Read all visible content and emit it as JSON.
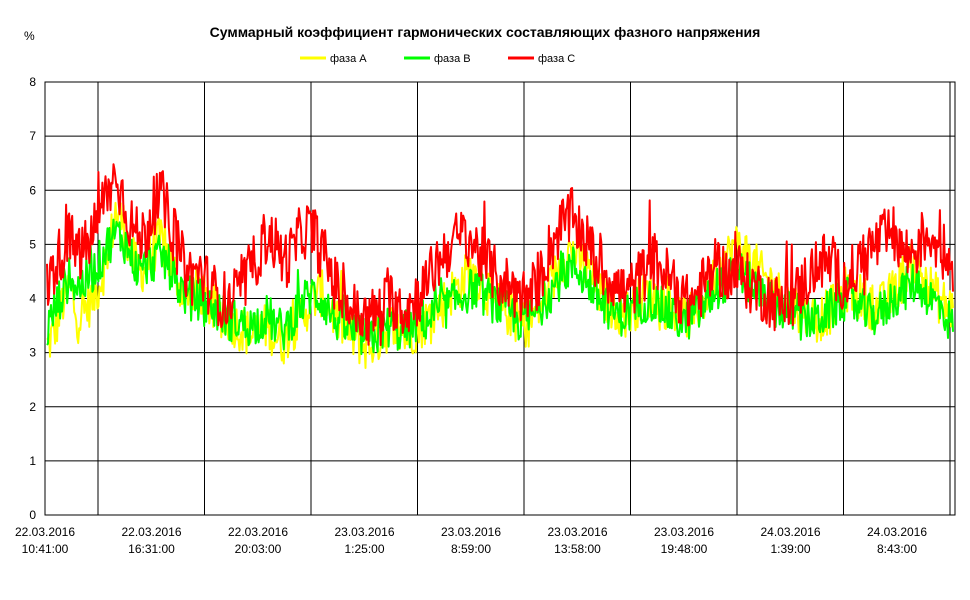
{
  "chart_data": {
    "type": "line",
    "title": "Суммарный коэффициент гармонических составляющих фазного напряжения",
    "ylabel": "%",
    "xlabel": "",
    "ylim": [
      0,
      8
    ],
    "y_ticks": [
      "0",
      "1",
      "2",
      "3",
      "4",
      "5",
      "6",
      "7",
      "8"
    ],
    "grid": true,
    "legend": "top-center",
    "x_tick_labels": [
      {
        "date": "22.03.2016",
        "time": "10:41:00"
      },
      {
        "date": "22.03.2016",
        "time": "16:31:00"
      },
      {
        "date": "22.03.2016",
        "time": "20:03:00"
      },
      {
        "date": "23.03.2016",
        "time": "1:25:00"
      },
      {
        "date": "23.03.2016",
        "time": "8:59:00"
      },
      {
        "date": "23.03.2016",
        "time": "13:58:00"
      },
      {
        "date": "23.03.2016",
        "time": "19:48:00"
      },
      {
        "date": "24.03.2016",
        "time": "1:39:00"
      },
      {
        "date": "24.03.2016",
        "time": "8:43:00"
      }
    ],
    "series": [
      {
        "name": "фаза A",
        "color": "#ffff00",
        "values": [
          3.1,
          3.4,
          3.9,
          4.2,
          3.6,
          3.8,
          4.0,
          4.3,
          4.8,
          5.6,
          5.4,
          4.8,
          4.5,
          4.6,
          4.9,
          5.1,
          4.7,
          4.4,
          4.1,
          4.0,
          4.2,
          3.9,
          3.8,
          3.7,
          3.6,
          3.5,
          3.4,
          3.3,
          3.4,
          3.5,
          3.3,
          3.2,
          3.4,
          3.6,
          3.8,
          4.0,
          4.1,
          3.9,
          3.6,
          3.5,
          3.3,
          3.2,
          3.1,
          3.2,
          3.3,
          3.5,
          3.4,
          3.3,
          3.4,
          3.5,
          3.6,
          3.8,
          3.9,
          4.1,
          4.2,
          4.4,
          4.5,
          4.3,
          4.1,
          3.9,
          3.8,
          3.7,
          3.6,
          3.5,
          3.7,
          3.9,
          4.2,
          4.5,
          4.8,
          4.9,
          4.7,
          4.5,
          4.2,
          4.0,
          3.9,
          3.8,
          3.7,
          3.8,
          4.0,
          4.1,
          4.0,
          3.9,
          3.8,
          3.7,
          3.6,
          3.7,
          3.9,
          4.2,
          4.5,
          4.7,
          4.9,
          5.0,
          4.8,
          4.6,
          4.4,
          4.3,
          4.1,
          4.0,
          3.9,
          3.8,
          3.7,
          3.6,
          3.7,
          3.8,
          4.0,
          4.2,
          4.1,
          4.0,
          3.9,
          3.8,
          3.9,
          4.1,
          4.3,
          4.5,
          4.6,
          4.4,
          4.2,
          4.0,
          3.9,
          3.8
        ],
        "spread": 0.45
      },
      {
        "name": "фаза B",
        "color": "#00ff00",
        "values": [
          3.4,
          3.8,
          4.1,
          4.4,
          4.2,
          4.3,
          4.5,
          4.7,
          5.0,
          5.2,
          5.1,
          4.8,
          4.5,
          4.6,
          4.7,
          4.8,
          4.6,
          4.3,
          4.1,
          4.0,
          4.0,
          3.9,
          3.8,
          3.7,
          3.6,
          3.6,
          3.5,
          3.5,
          3.6,
          3.7,
          3.5,
          3.4,
          3.6,
          3.8,
          4.0,
          4.1,
          4.0,
          3.8,
          3.6,
          3.5,
          3.4,
          3.3,
          3.3,
          3.3,
          3.4,
          3.5,
          3.4,
          3.4,
          3.5,
          3.6,
          3.6,
          3.7,
          3.8,
          3.9,
          4.0,
          4.1,
          4.2,
          4.1,
          4.0,
          3.9,
          3.8,
          3.7,
          3.6,
          3.6,
          3.7,
          3.9,
          4.1,
          4.3,
          4.5,
          4.6,
          4.5,
          4.3,
          4.1,
          3.9,
          3.8,
          3.7,
          3.7,
          3.8,
          3.9,
          4.0,
          3.9,
          3.8,
          3.7,
          3.6,
          3.6,
          3.7,
          3.8,
          4.0,
          4.2,
          4.3,
          4.4,
          4.5,
          4.3,
          4.2,
          4.0,
          3.9,
          3.8,
          3.8,
          3.7,
          3.6,
          3.6,
          3.6,
          3.7,
          3.8,
          3.9,
          4.0,
          3.9,
          3.8,
          3.7,
          3.7,
          3.8,
          4.0,
          4.1,
          4.2,
          4.3,
          4.2,
          4.0,
          3.9,
          3.7,
          3.5
        ],
        "spread": 0.4
      },
      {
        "name": "фаза C",
        "color": "#ff0000",
        "values": [
          4.2,
          4.6,
          4.9,
          5.1,
          4.8,
          4.9,
          5.2,
          5.6,
          6.0,
          6.2,
          5.9,
          5.4,
          5.1,
          5.2,
          5.7,
          5.9,
          5.5,
          5.0,
          4.6,
          4.4,
          4.5,
          4.3,
          4.1,
          4.0,
          3.9,
          4.1,
          4.3,
          4.6,
          4.9,
          5.2,
          5.0,
          4.7,
          4.8,
          5.1,
          5.3,
          5.2,
          4.9,
          4.6,
          4.2,
          4.0,
          3.8,
          3.7,
          3.6,
          3.7,
          3.8,
          4.0,
          3.9,
          3.8,
          3.9,
          4.1,
          4.3,
          4.6,
          4.8,
          5.0,
          5.1,
          5.2,
          5.0,
          4.8,
          4.6,
          4.4,
          4.3,
          4.2,
          4.1,
          4.0,
          4.2,
          4.5,
          4.9,
          5.2,
          5.4,
          5.5,
          5.3,
          5.0,
          4.7,
          4.5,
          4.4,
          4.2,
          4.1,
          4.2,
          4.4,
          4.6,
          4.7,
          4.5,
          4.3,
          4.1,
          3.9,
          4.0,
          4.2,
          4.4,
          4.6,
          4.5,
          4.4,
          4.5,
          4.3,
          4.2,
          4.1,
          4.0,
          3.9,
          3.9,
          4.0,
          4.2,
          4.4,
          4.6,
          4.7,
          4.6,
          4.4,
          4.3,
          4.5,
          4.7,
          4.9,
          5.0,
          5.1,
          5.2,
          5.0,
          4.8,
          4.9,
          5.1,
          5.2,
          5.0,
          4.8,
          4.6
        ],
        "spread": 0.55
      }
    ]
  }
}
